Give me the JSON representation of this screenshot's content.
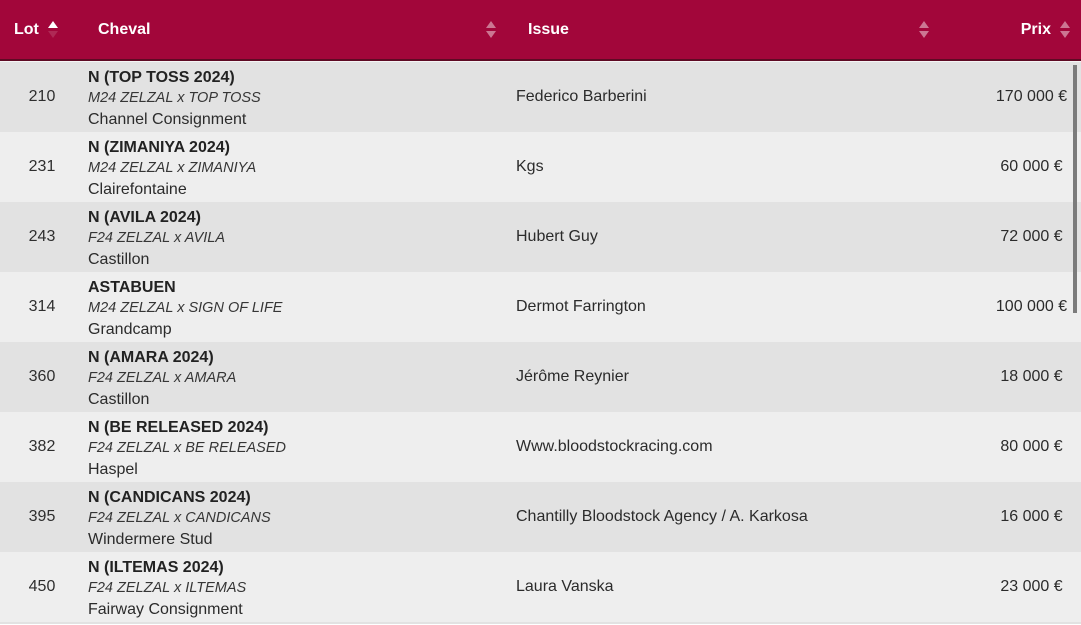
{
  "table": {
    "columns": [
      {
        "key": "lot",
        "label": "Lot",
        "sort": "asc"
      },
      {
        "key": "cheval",
        "label": "Cheval",
        "sort": "none"
      },
      {
        "key": "issue",
        "label": "Issue",
        "sort": "none"
      },
      {
        "key": "prix",
        "label": "Prix",
        "sort": "none"
      }
    ],
    "rows": [
      {
        "lot": "210",
        "name": "N (TOP TOSS 2024)",
        "pedigree": "M24 ZELZAL x TOP TOSS",
        "consignor": "Channel Consignment",
        "issue": "Federico Barberini",
        "prix": "170 000 €"
      },
      {
        "lot": "231",
        "name": "N (ZIMANIYA 2024)",
        "pedigree": "M24 ZELZAL x ZIMANIYA",
        "consignor": "Clairefontaine",
        "issue": "Kgs",
        "prix": "60 000 €"
      },
      {
        "lot": "243",
        "name": "N (AVILA 2024)",
        "pedigree": "F24 ZELZAL x AVILA",
        "consignor": "Castillon",
        "issue": "Hubert Guy",
        "prix": "72 000 €"
      },
      {
        "lot": "314",
        "name": "ASTABUEN",
        "pedigree": "M24 ZELZAL x SIGN OF LIFE",
        "consignor": "Grandcamp",
        "issue": "Dermot Farrington",
        "prix": "100 000 €"
      },
      {
        "lot": "360",
        "name": "N (AMARA 2024)",
        "pedigree": "F24 ZELZAL x AMARA",
        "consignor": "Castillon",
        "issue": "Jérôme Reynier",
        "prix": "18 000 €"
      },
      {
        "lot": "382",
        "name": "N (BE RELEASED 2024)",
        "pedigree": "F24 ZELZAL x BE RELEASED",
        "consignor": "Haspel",
        "issue": "Www.bloodstockracing.com",
        "prix": "80 000 €"
      },
      {
        "lot": "395",
        "name": "N (CANDICANS 2024)",
        "pedigree": "F24 ZELZAL x CANDICANS",
        "consignor": "Windermere Stud",
        "issue": "Chantilly Bloodstock Agency / A. Karkosa",
        "prix": "16 000 €"
      },
      {
        "lot": "450",
        "name": "N (ILTEMAS 2024)",
        "pedigree": "F24 ZELZAL x ILTEMAS",
        "consignor": "Fairway Consignment",
        "issue": "Laura Vanska",
        "prix": "23 000 €"
      }
    ]
  },
  "colors": {
    "header_bg": "#a2063a",
    "header_text": "#ffffff",
    "row_odd_bg": "#e2e2e2",
    "row_even_bg": "#eeeeee",
    "body_text": "#2b2b2b",
    "scrollbar_thumb": "#7b7b7b"
  }
}
